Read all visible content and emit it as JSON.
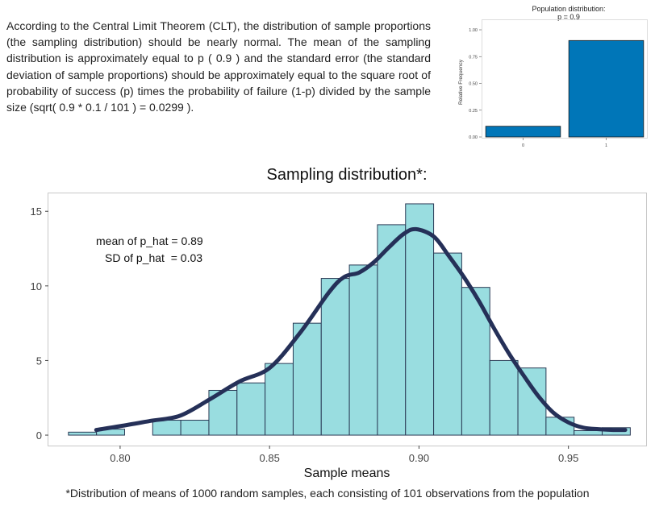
{
  "intro_text": "According to the Central Limit Theorem (CLT), the distribution of sample proportions (the sampling distribution) should be nearly normal. The mean of the sampling distribution is approximately equal to p ( 0.9 ) and the standard error (the standard deviation of sample proportions) should be approximately equal to the square root of probability of success (p) times the probability of failure (1-p) divided by the sample size (sqrt( 0.9 * 0.1 / 101 ) = 0.0299 ).",
  "caption": "*Distribution of means of 1000 random samples, each consisting of 101 observations from the population",
  "colors": {
    "pop_bar": "#0076b8",
    "hist_fill": "#99dde0",
    "hist_stroke": "#2a3a55",
    "density_line": "#253058",
    "panel_border": "#c8c8c8"
  },
  "chart_data": [
    {
      "type": "bar",
      "title_lines": [
        "Population distribution:",
        "p = 0.9"
      ],
      "ylabel": "Relative Frequency",
      "xlabel": "",
      "categories": [
        "0",
        "1"
      ],
      "values": [
        0.1,
        0.9
      ],
      "ylim": [
        0,
        1
      ],
      "yticks": [
        0,
        0.25,
        0.5,
        0.75,
        1.0
      ],
      "ytick_labels": [
        "0.00",
        "0.25",
        "0.50",
        "0.75",
        "1.00"
      ],
      "grid": false
    },
    {
      "type": "histogram",
      "title": "Sampling distribution*:",
      "xlabel": "Sample means",
      "ylabel": "",
      "xlim": [
        0.776,
        0.976
      ],
      "ylim": [
        -0.7,
        16.2
      ],
      "xticks": [
        0.8,
        0.85,
        0.9,
        0.95
      ],
      "xtick_labels": [
        "0.80",
        "0.85",
        "0.90",
        "0.95"
      ],
      "yticks": [
        0,
        5,
        10,
        15
      ],
      "ytick_labels": [
        "0",
        "5",
        "10",
        "15"
      ],
      "bins": [
        {
          "x0": 0.7827,
          "x1": 0.7921,
          "y": 0.2
        },
        {
          "x0": 0.7921,
          "x1": 0.8015,
          "y": 0.4
        },
        {
          "x0": 0.8015,
          "x1": 0.8109,
          "y": 0.0
        },
        {
          "x0": 0.8109,
          "x1": 0.8203,
          "y": 1.0
        },
        {
          "x0": 0.8203,
          "x1": 0.8297,
          "y": 1.0
        },
        {
          "x0": 0.8297,
          "x1": 0.8391,
          "y": 3.0
        },
        {
          "x0": 0.8391,
          "x1": 0.8485,
          "y": 3.5
        },
        {
          "x0": 0.8485,
          "x1": 0.8579,
          "y": 4.8
        },
        {
          "x0": 0.8579,
          "x1": 0.8673,
          "y": 7.5
        },
        {
          "x0": 0.8673,
          "x1": 0.8767,
          "y": 10.5
        },
        {
          "x0": 0.8767,
          "x1": 0.8861,
          "y": 11.4
        },
        {
          "x0": 0.8861,
          "x1": 0.8955,
          "y": 14.1
        },
        {
          "x0": 0.8955,
          "x1": 0.9049,
          "y": 15.5
        },
        {
          "x0": 0.9049,
          "x1": 0.9143,
          "y": 12.2
        },
        {
          "x0": 0.9143,
          "x1": 0.9237,
          "y": 9.9
        },
        {
          "x0": 0.9237,
          "x1": 0.9331,
          "y": 5.0
        },
        {
          "x0": 0.9331,
          "x1": 0.9425,
          "y": 4.5
        },
        {
          "x0": 0.9425,
          "x1": 0.9519,
          "y": 1.2
        },
        {
          "x0": 0.9519,
          "x1": 0.9613,
          "y": 0.3
        },
        {
          "x0": 0.9613,
          "x1": 0.9707,
          "y": 0.5
        }
      ],
      "density_curve": {
        "x": [
          0.792,
          0.8,
          0.81,
          0.82,
          0.83,
          0.84,
          0.85,
          0.86,
          0.87,
          0.875,
          0.88,
          0.885,
          0.89,
          0.895,
          0.899,
          0.905,
          0.91,
          0.915,
          0.92,
          0.925,
          0.93,
          0.935,
          0.94,
          0.945,
          0.95,
          0.955,
          0.96,
          0.965,
          0.969
        ],
        "y": [
          0.35,
          0.6,
          0.95,
          1.3,
          2.4,
          3.6,
          4.5,
          6.8,
          9.6,
          10.6,
          10.9,
          11.6,
          12.6,
          13.5,
          13.8,
          13.3,
          12.0,
          10.6,
          9.0,
          7.2,
          5.5,
          4.0,
          2.6,
          1.5,
          0.85,
          0.5,
          0.4,
          0.35,
          0.35
        ]
      },
      "annotations": [
        "mean of p_hat = 0.89",
        "SD of p_hat  = 0.03"
      ]
    }
  ]
}
